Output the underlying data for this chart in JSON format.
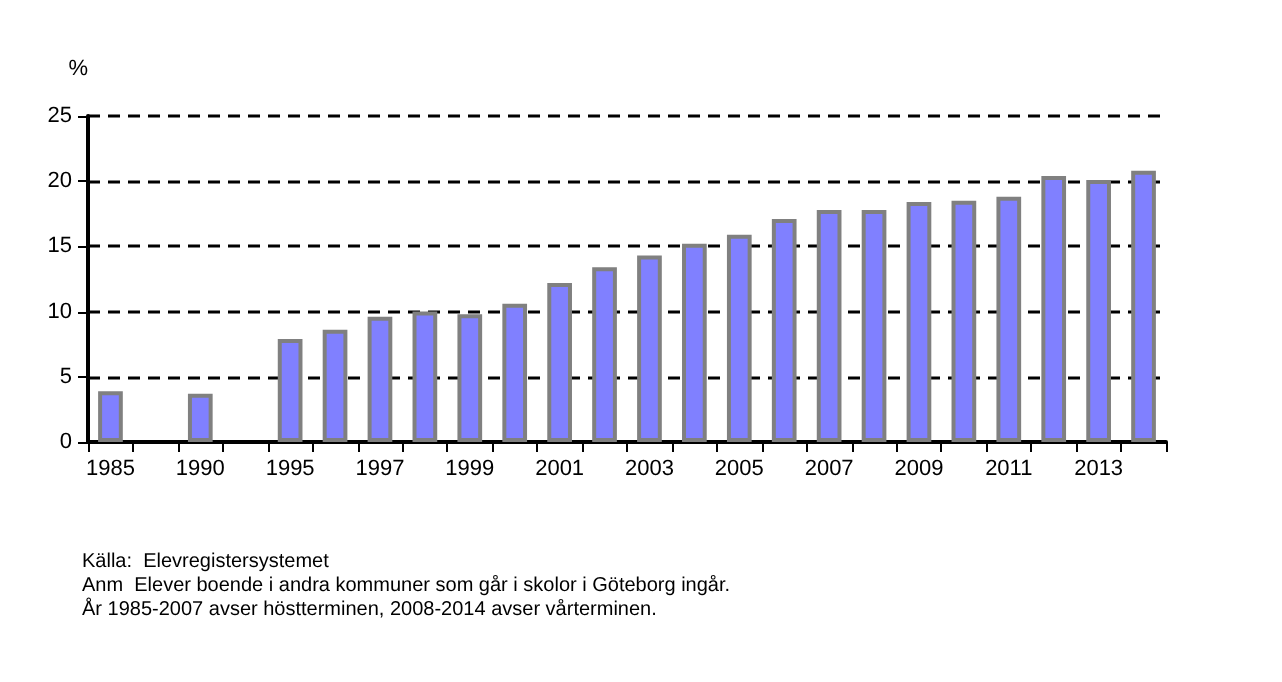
{
  "chart_data": {
    "type": "bar",
    "ylabel": "%",
    "categories": [
      "1985",
      null,
      "1990",
      null,
      "1995",
      null,
      "1997",
      null,
      "1999",
      null,
      "2001",
      null,
      "2003",
      null,
      "2005",
      null,
      "2007",
      null,
      "2009",
      null,
      "2011",
      null,
      "2013",
      null
    ],
    "values": [
      3.9,
      null,
      3.7,
      null,
      7.9,
      8.6,
      9.6,
      10.0,
      9.8,
      10.6,
      12.2,
      13.4,
      14.3,
      15.2,
      15.9,
      17.1,
      17.8,
      17.8,
      18.4,
      18.5,
      18.8,
      20.4,
      20.1,
      20.8
    ],
    "color": "#8080ff",
    "ylim": [
      0,
      25
    ],
    "yticks": [
      0,
      5,
      10,
      15,
      20,
      25
    ],
    "grid": "y",
    "annotations": [
      "Källa:  Elevregistersystemet",
      "Anm  Elever boende i andra kommuner som går i skolor i Göteborg ingår.",
      "År 1985-2007 avser höstterminen, 2008-2014 avser vårterminen."
    ]
  }
}
